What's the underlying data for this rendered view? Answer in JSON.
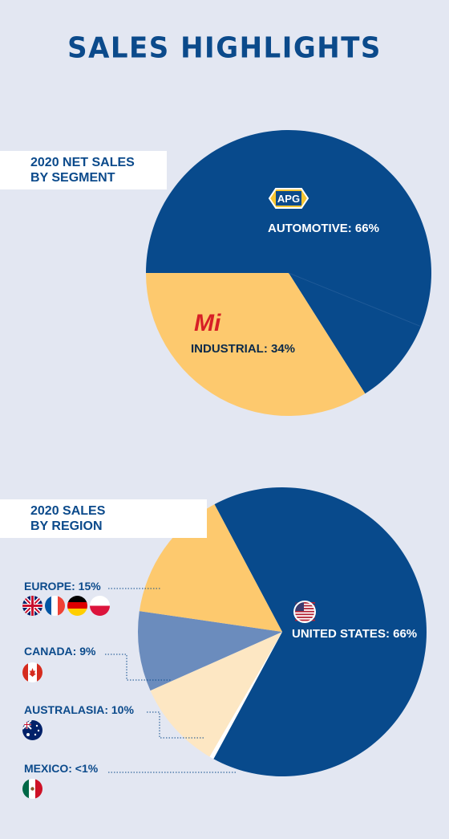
{
  "page": {
    "title": "SALES HIGHLIGHTS"
  },
  "segment": {
    "box_line1": "2020 NET SALES",
    "box_line2": "BY SEGMENT",
    "apg_logo_text": "APG",
    "mi_logo_text": "Mi"
  },
  "region": {
    "box_line1": "2020 SALES",
    "box_line2": "BY REGION",
    "europe_label": "EUROPE: 15%",
    "canada_label": "CANADA: 9%",
    "australasia_label": "AUSTRALASIA: 10%",
    "mexico_label": "MEXICO: <1%",
    "us_label": "UNITED STATES: 66%"
  },
  "colors": {
    "navy": "#084a8c",
    "gold": "#fdc96e",
    "slate": "#6b8cbd",
    "cream": "#fde7c3",
    "title": "#0b4a8b",
    "mi_red": "#d71f26"
  },
  "icons": [
    "us-flag-icon",
    "uk-flag-icon",
    "france-flag-icon",
    "germany-flag-icon",
    "poland-flag-icon",
    "canada-flag-icon",
    "australia-flag-icon",
    "mexico-flag-icon"
  ],
  "chart_data": [
    {
      "type": "pie",
      "title": "2020 NET SALES BY SEGMENT",
      "categories": [
        "AUTOMOTIVE",
        "INDUSTRIAL"
      ],
      "values": [
        66,
        34
      ],
      "labels": [
        "AUTOMOTIVE: 66%",
        "INDUSTRIAL: 34%"
      ]
    },
    {
      "type": "pie",
      "title": "2020 SALES BY REGION",
      "categories": [
        "UNITED STATES",
        "EUROPE",
        "CANADA",
        "AUSTRALASIA",
        "MEXICO"
      ],
      "values": [
        66,
        15,
        9,
        10,
        0.5
      ],
      "labels": [
        "UNITED STATES: 66%",
        "EUROPE: 15%",
        "CANADA: 9%",
        "AUSTRALASIA: 10%",
        "MEXICO: <1%"
      ]
    }
  ]
}
